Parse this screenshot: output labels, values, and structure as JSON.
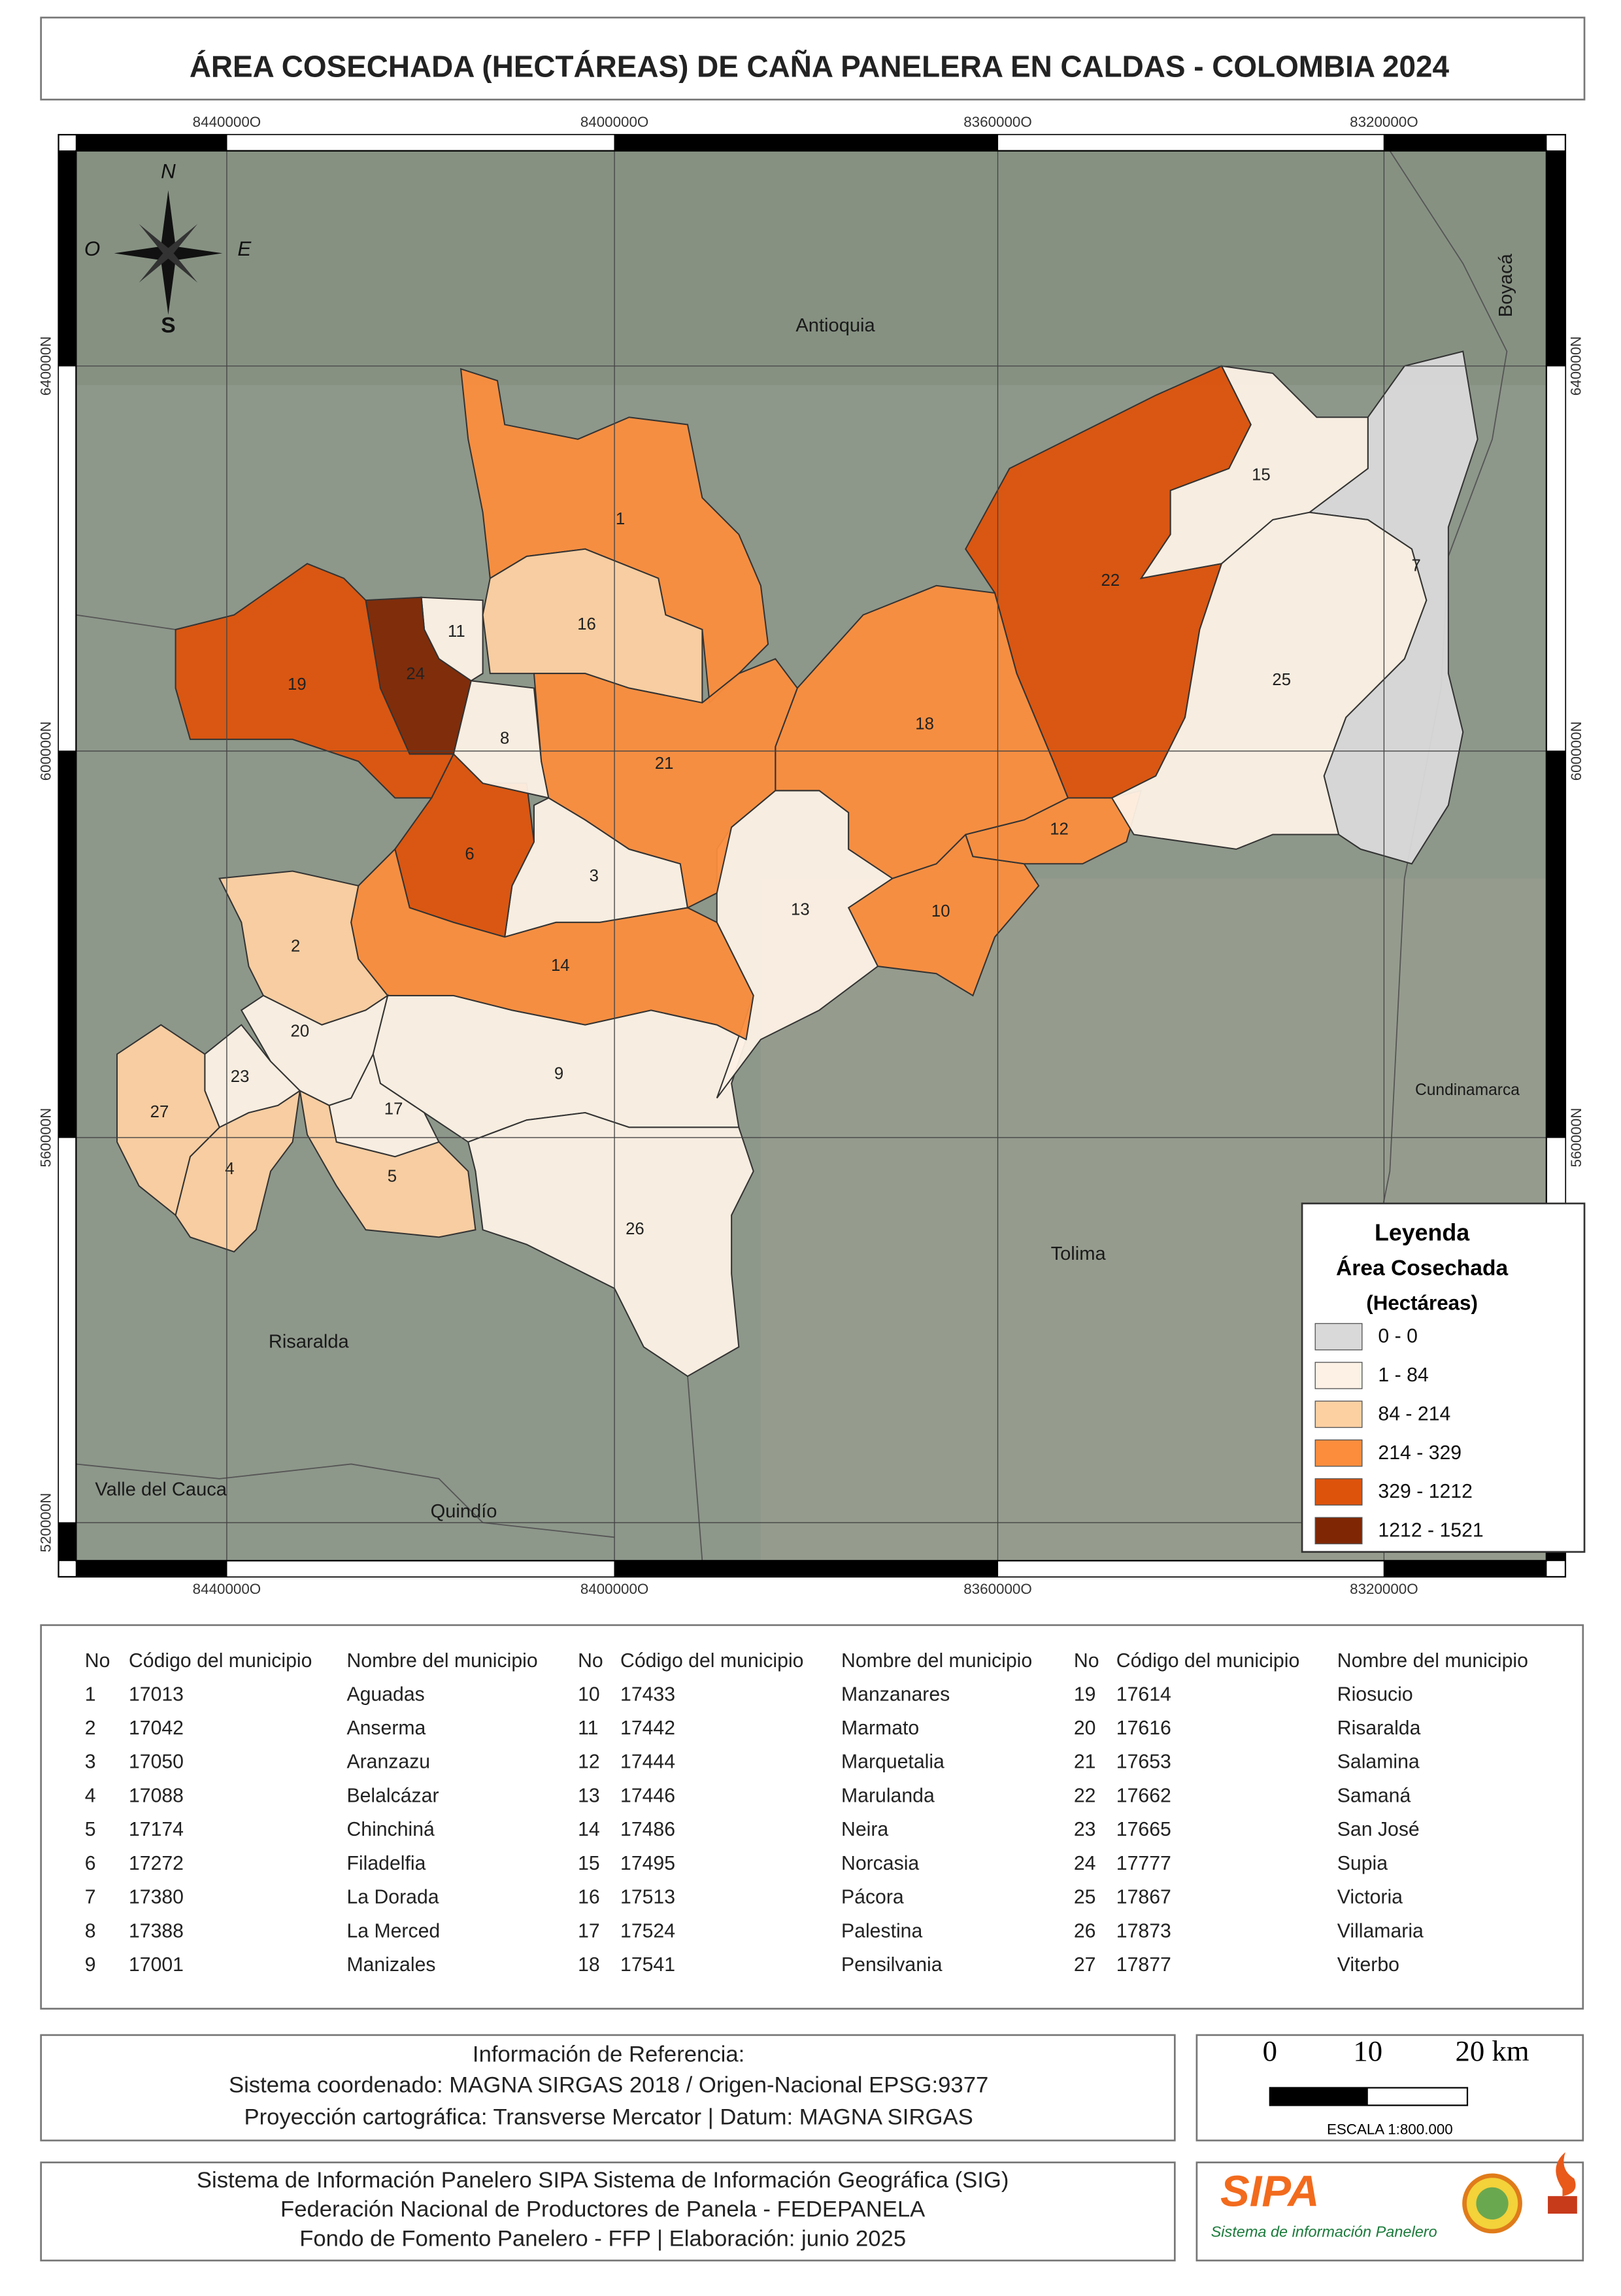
{
  "header": {
    "title": "ÁREA COSECHADA (HECTÁREAS) DE CAÑA PANELERA EN CALDAS - COLOMBIA 2024"
  },
  "map": {
    "x_coords": [
      "8440000O",
      "8400000O",
      "8360000O",
      "8320000O"
    ],
    "y_coords": [
      "640000N",
      "600000N",
      "560000N",
      "520000N"
    ],
    "compass": [
      "N",
      "O",
      "E",
      "S"
    ],
    "regions": [
      "Antioquia",
      "Boyacá",
      "Cundinamarca",
      "Tolima",
      "Risaralda",
      "Valle del Cauca",
      "Quindío"
    ],
    "municipality_colors": [
      "#fb8d3d",
      "#fdd0a2",
      "#fdf1e5",
      "#fdd0a2",
      "#fdd0a2",
      "#dd530c",
      "#d9d9d9",
      "#fdf1e5",
      "#fdf1e5",
      "#fb8d3d",
      "#fdf1e5",
      "#fb8d3d",
      "#fdf1e5",
      "#fb8d3d",
      "#fdf1e5",
      "#fdd0a2",
      "#fdf1e5",
      "#fb8d3d",
      "#dd530c",
      "#fdf1e5",
      "#fb8d3d",
      "#dd530c",
      "#fdf1e5",
      "#7f2704",
      "#fdf1e5",
      "#fdf1e5",
      "#fdd0a2"
    ]
  },
  "legend": {
    "title": "Leyenda",
    "subtitle": "Área Cosechada",
    "unit": "(Hectáreas)",
    "entries": [
      {
        "label": "0 - 0",
        "color": "#d9d9d9"
      },
      {
        "label": "1 - 84",
        "color": "#fdf1e5"
      },
      {
        "label": "84 - 214",
        "color": "#fdd0a2"
      },
      {
        "label": "214 - 329",
        "color": "#fb8d3d"
      },
      {
        "label": "329 - 1212",
        "color": "#dd530c"
      },
      {
        "label": "1212 - 1521",
        "color": "#7f2704"
      }
    ]
  },
  "table": {
    "columns": [
      "No",
      "Código del municipio",
      "Nombre del municipio"
    ],
    "rows": [
      [
        "1",
        "17013",
        "Aguadas"
      ],
      [
        "2",
        "17042",
        "Anserma"
      ],
      [
        "3",
        "17050",
        "Aranzazu"
      ],
      [
        "4",
        "17088",
        "Belalcázar"
      ],
      [
        "5",
        "17174",
        "Chinchiná"
      ],
      [
        "6",
        "17272",
        "Filadelfia"
      ],
      [
        "7",
        "17380",
        "La Dorada"
      ],
      [
        "8",
        "17388",
        "La Merced"
      ],
      [
        "9",
        "17001",
        "Manizales"
      ],
      [
        "10",
        "17433",
        "Manzanares"
      ],
      [
        "11",
        "17442",
        "Marmato"
      ],
      [
        "12",
        "17444",
        "Marquetalia"
      ],
      [
        "13",
        "17446",
        "Marulanda"
      ],
      [
        "14",
        "17486",
        "Neira"
      ],
      [
        "15",
        "17495",
        "Norcasia"
      ],
      [
        "16",
        "17513",
        "Pácora"
      ],
      [
        "17",
        "17524",
        "Palestina"
      ],
      [
        "18",
        "17541",
        "Pensilvania"
      ],
      [
        "19",
        "17614",
        "Riosucio"
      ],
      [
        "20",
        "17616",
        "Risaralda"
      ],
      [
        "21",
        "17653",
        "Salamina"
      ],
      [
        "22",
        "17662",
        "Samaná"
      ],
      [
        "23",
        "17665",
        "San José"
      ],
      [
        "24",
        "17777",
        "Supia"
      ],
      [
        "25",
        "17867",
        "Victoria"
      ],
      [
        "26",
        "17873",
        "Villamaria"
      ],
      [
        "27",
        "17877",
        "Viterbo"
      ]
    ]
  },
  "reference": [
    "Información de Referencia:",
    "Sistema coordenado: MAGNA SIRGAS 2018 / Origen-Nacional EPSG:9377",
    "Proyección cartográfica: Transverse Mercator | Datum: MAGNA SIRGAS"
  ],
  "scale_bar": {
    "labels": [
      "0",
      "10",
      "20 km"
    ],
    "scale": "ESCALA 1:800.000"
  },
  "credits": [
    "Sistema de Información Panelero SIPA  Sistema de Información Geográfica (SIG)",
    "Federación Nacional de Productores de Panela - FEDEPANELA",
    "Fondo de Fomento Panelero - FFP |  Elaboración: junio 2025"
  ],
  "logo": {
    "name": "SIPA",
    "tagline": "Sistema de información Panelero"
  }
}
